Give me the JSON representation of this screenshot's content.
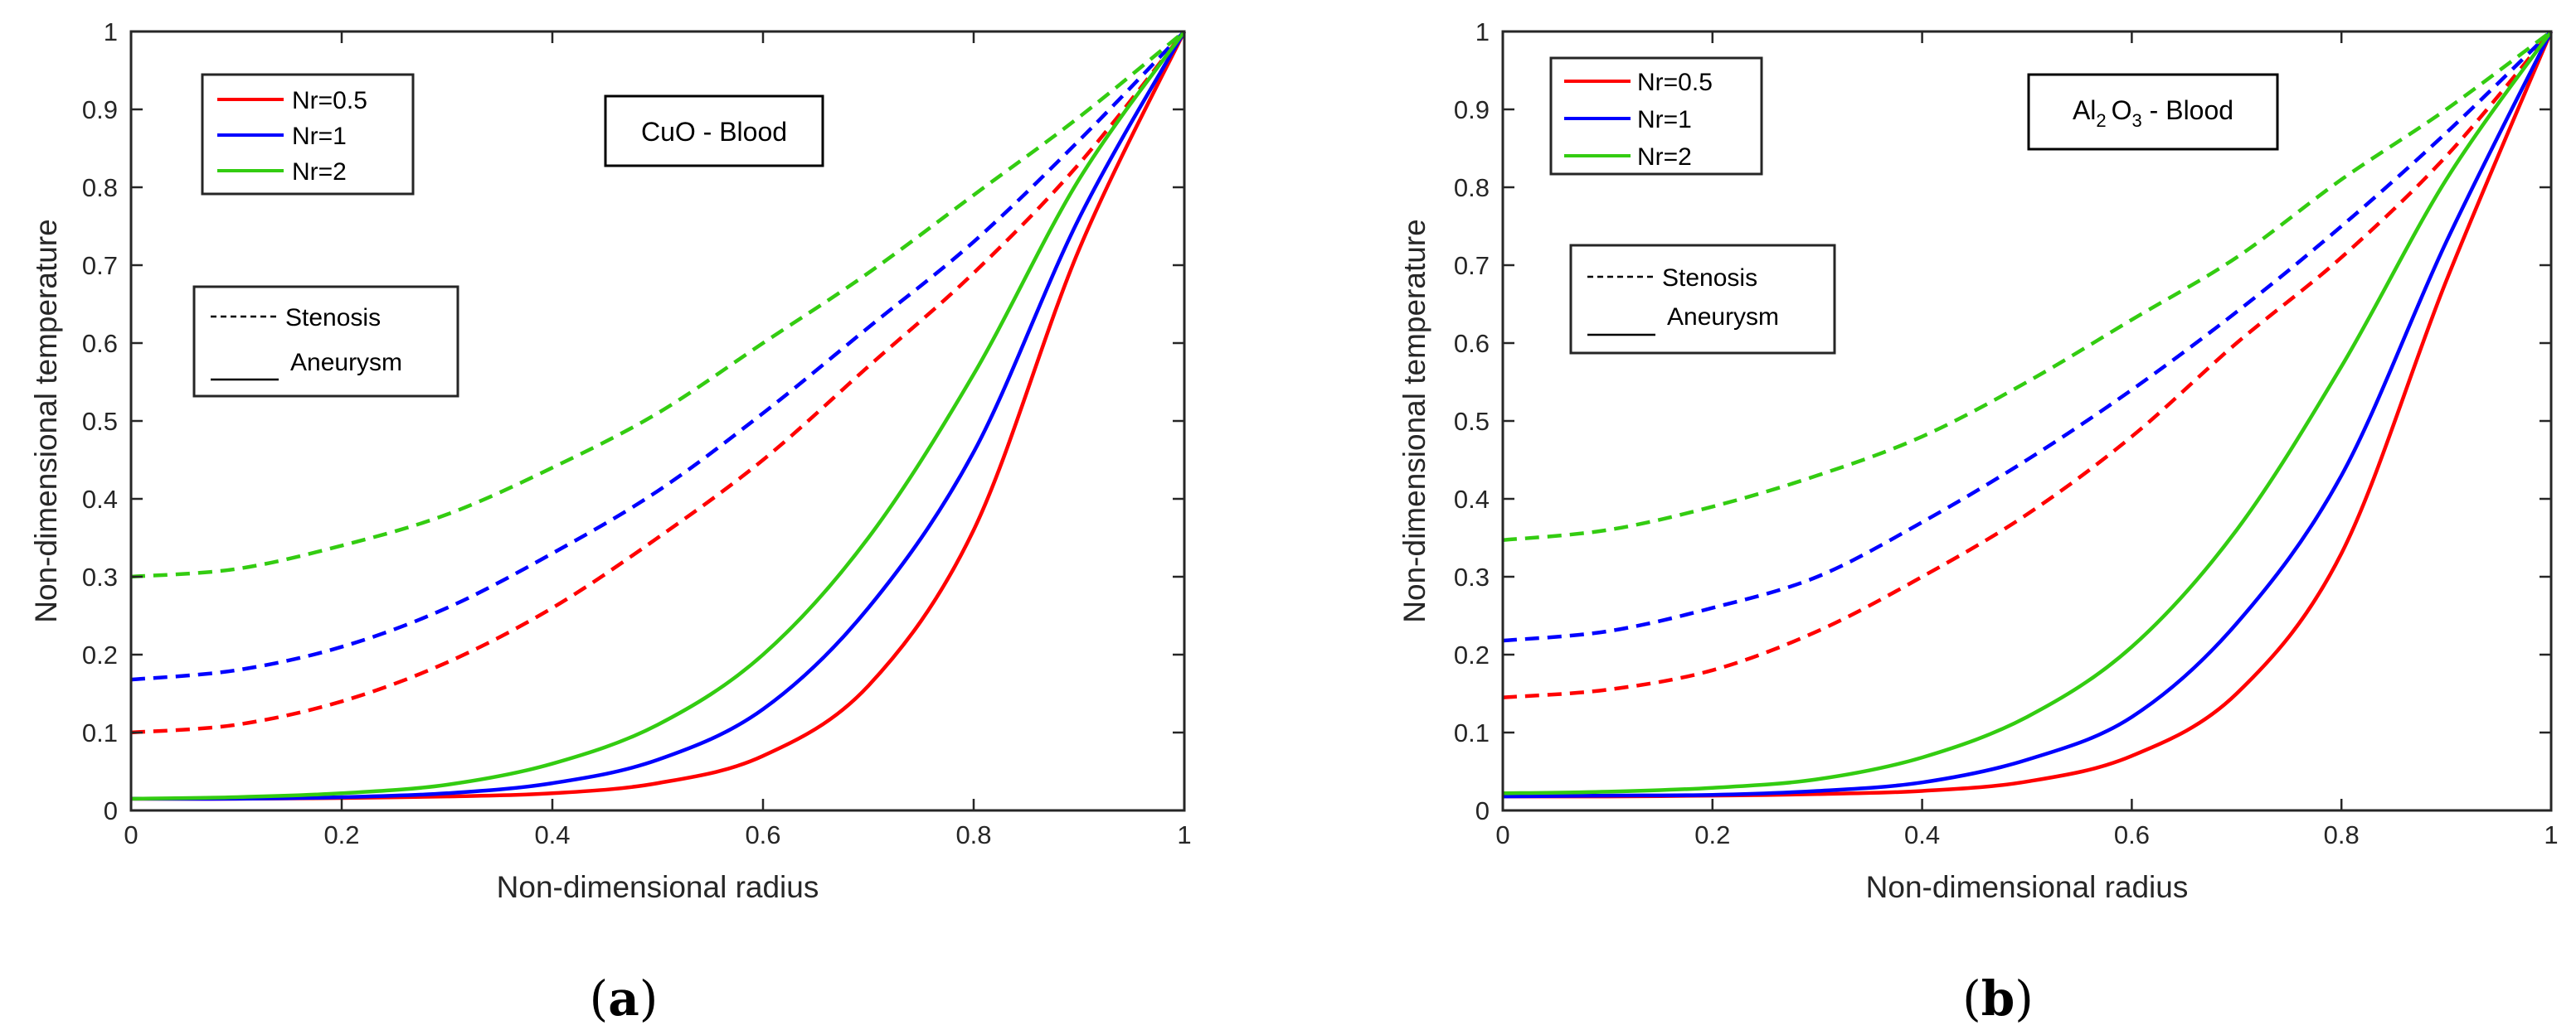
{
  "figure": {
    "captions": [
      "(a)",
      "(b)"
    ]
  },
  "chart_data": [
    {
      "type": "line",
      "panel_label": "(a)",
      "annotation": "CuO - Blood",
      "xlabel": "Non-dimensional radius",
      "ylabel": "Non-dimensional temperature",
      "xlim": [
        0,
        1
      ],
      "ylim": [
        0,
        1
      ],
      "xticks": [
        "0",
        "0.2",
        "0.4",
        "0.6",
        "0.8",
        "1"
      ],
      "yticks": [
        "0",
        "0.1",
        "0.2",
        "0.3",
        "0.4",
        "0.5",
        "0.6",
        "0.7",
        "0.8",
        "0.9",
        "1"
      ],
      "legend_colors": {
        "entries": [
          "Nr=0.5",
          "Nr=1",
          "Nr=2"
        ],
        "colors": [
          "#ff0000",
          "#0000ff",
          "#33cc11"
        ],
        "placement": "top-left"
      },
      "legend_styles": {
        "entries": [
          "Stenosis",
          "Aneurysm"
        ],
        "line_styles": [
          "dashed",
          "solid"
        ],
        "placement": "middle-left"
      },
      "x": [
        0,
        0.1,
        0.2,
        0.3,
        0.4,
        0.5,
        0.6,
        0.7,
        0.8,
        0.9,
        1.0
      ],
      "series": [
        {
          "name": "Nr=0.5",
          "case": "Stenosis",
          "style": "dashed",
          "color": "#ff0000",
          "values": [
            0.1,
            0.11,
            0.14,
            0.19,
            0.26,
            0.35,
            0.45,
            0.57,
            0.69,
            0.83,
            1.0
          ]
        },
        {
          "name": "Nr=1",
          "case": "Stenosis",
          "style": "dashed",
          "color": "#0000ff",
          "values": [
            0.168,
            0.18,
            0.21,
            0.26,
            0.33,
            0.41,
            0.51,
            0.62,
            0.73,
            0.86,
            1.0
          ]
        },
        {
          "name": "Nr=2",
          "case": "Stenosis",
          "style": "dashed",
          "color": "#33cc11",
          "values": [
            0.3,
            0.31,
            0.34,
            0.38,
            0.44,
            0.51,
            0.6,
            0.69,
            0.79,
            0.89,
            1.0
          ]
        },
        {
          "name": "Nr=0.5",
          "case": "Aneurysm",
          "style": "solid",
          "color": "#ff0000",
          "values": [
            0.015,
            0.015,
            0.016,
            0.018,
            0.022,
            0.035,
            0.07,
            0.16,
            0.36,
            0.72,
            1.0
          ]
        },
        {
          "name": "Nr=1",
          "case": "Aneurysm",
          "style": "solid",
          "color": "#0000ff",
          "values": [
            0.015,
            0.015,
            0.017,
            0.022,
            0.035,
            0.065,
            0.13,
            0.26,
            0.46,
            0.76,
            1.0
          ]
        },
        {
          "name": "Nr=2",
          "case": "Aneurysm",
          "style": "solid",
          "color": "#33cc11",
          "values": [
            0.015,
            0.017,
            0.022,
            0.033,
            0.06,
            0.11,
            0.2,
            0.35,
            0.56,
            0.81,
            1.0
          ]
        }
      ]
    },
    {
      "type": "line",
      "panel_label": "(b)",
      "annotation_parts": {
        "al": "Al",
        "sub1": "2",
        "o": "O",
        "sub2": "3",
        "rest": " - Blood"
      },
      "xlabel": "Non-dimensional radius",
      "ylabel": "Non-dimensional temperature",
      "xlim": [
        0,
        1
      ],
      "ylim": [
        0,
        1
      ],
      "xticks": [
        "0",
        "0.2",
        "0.4",
        "0.6",
        "0.8",
        "1"
      ],
      "yticks": [
        "0",
        "0.1",
        "0.2",
        "0.3",
        "0.4",
        "0.5",
        "0.6",
        "0.7",
        "0.8",
        "0.9",
        "1"
      ],
      "legend_colors": {
        "entries": [
          "Nr=0.5",
          "Nr=1",
          "Nr=2"
        ],
        "colors": [
          "#ff0000",
          "#0000ff",
          "#33cc11"
        ],
        "placement": "top-left"
      },
      "legend_styles": {
        "entries": [
          "Stenosis",
          "Aneurysm"
        ],
        "line_styles": [
          "dashed",
          "solid"
        ],
        "placement": "middle-left"
      },
      "x": [
        0,
        0.1,
        0.2,
        0.3,
        0.4,
        0.5,
        0.6,
        0.7,
        0.8,
        0.9,
        1.0
      ],
      "series": [
        {
          "name": "Nr=0.5",
          "case": "Stenosis",
          "style": "dashed",
          "color": "#ff0000",
          "values": [
            0.145,
            0.155,
            0.18,
            0.23,
            0.3,
            0.38,
            0.48,
            0.6,
            0.71,
            0.84,
            1.0
          ]
        },
        {
          "name": "Nr=1",
          "case": "Stenosis",
          "style": "dashed",
          "color": "#0000ff",
          "values": [
            0.218,
            0.23,
            0.26,
            0.3,
            0.37,
            0.45,
            0.54,
            0.64,
            0.75,
            0.87,
            1.0
          ]
        },
        {
          "name": "Nr=2",
          "case": "Stenosis",
          "style": "dashed",
          "color": "#33cc11",
          "values": [
            0.347,
            0.36,
            0.39,
            0.43,
            0.48,
            0.55,
            0.63,
            0.71,
            0.81,
            0.9,
            1.0
          ]
        },
        {
          "name": "Nr=0.5",
          "case": "Aneurysm",
          "style": "solid",
          "color": "#ff0000",
          "values": [
            0.018,
            0.018,
            0.019,
            0.021,
            0.025,
            0.037,
            0.07,
            0.15,
            0.33,
            0.68,
            1.0
          ]
        },
        {
          "name": "Nr=1",
          "case": "Aneurysm",
          "style": "solid",
          "color": "#0000ff",
          "values": [
            0.018,
            0.019,
            0.02,
            0.025,
            0.036,
            0.065,
            0.12,
            0.24,
            0.43,
            0.73,
            1.0
          ]
        },
        {
          "name": "Nr=2",
          "case": "Aneurysm",
          "style": "solid",
          "color": "#33cc11",
          "values": [
            0.022,
            0.024,
            0.029,
            0.04,
            0.068,
            0.12,
            0.21,
            0.36,
            0.57,
            0.81,
            1.0
          ]
        }
      ]
    }
  ]
}
